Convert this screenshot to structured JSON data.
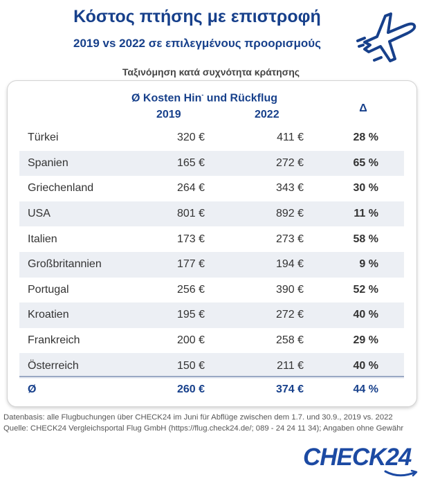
{
  "header": {
    "title": "Κόστος πτήσης με επιστροφή",
    "subtitle": "2019 vs 2022 σε επιλεγμένους προορισμούς",
    "sort_note": "Ταξινόμηση κατά συχνότητα κράτησης"
  },
  "table": {
    "heading_main": "Ø Kosten Hin",
    "heading_sup": "-",
    "heading_rest": " und Rückflug",
    "year_1": "2019",
    "year_2": "2022",
    "delta": "Δ",
    "rows": [
      {
        "country": "Türkei",
        "v2019": "320 €",
        "v2022": "411 €",
        "delta": "28 %"
      },
      {
        "country": "Spanien",
        "v2019": "165 €",
        "v2022": "272 €",
        "delta": "65 %"
      },
      {
        "country": "Griechenland",
        "v2019": "264 €",
        "v2022": "343 €",
        "delta": "30 %"
      },
      {
        "country": "USA",
        "v2019": "801 €",
        "v2022": "892 €",
        "delta": "11 %"
      },
      {
        "country": "Italien",
        "v2019": "173 €",
        "v2022": "273 €",
        "delta": "58 %"
      },
      {
        "country": "Großbritannien",
        "v2019": "177 €",
        "v2022": "194 €",
        "delta": "9 %"
      },
      {
        "country": "Portugal",
        "v2019": "256 €",
        "v2022": "390 €",
        "delta": "52 %"
      },
      {
        "country": "Kroatien",
        "v2019": "195 €",
        "v2022": "272 €",
        "delta": "40 %"
      },
      {
        "country": "Frankreich",
        "v2019": "200 €",
        "v2022": "258 €",
        "delta": "29 %"
      },
      {
        "country": "Österreich",
        "v2019": "150 €",
        "v2022": "211 €",
        "delta": "40 %"
      }
    ],
    "average": {
      "country": "Ø",
      "v2019": "260 €",
      "v2022": "374 €",
      "delta": "44 %"
    }
  },
  "footer": {
    "line_1": "Datenbasis: alle Flugbuchungen über CHECK24 im Juni für Abflüge zwischen dem 1.7. und 30.9., 2019 vs. 2022",
    "line_2": "Quelle: CHECK24 Vergleichsportal Flug GmbH (https://flug.check24.de/; 089 - 24 24 11 34); Angaben ohne Gewähr"
  },
  "logo": "CHECK24",
  "colors": {
    "brand_blue": "#17408b",
    "row_shade": "#eceff4"
  },
  "icons": [
    "airplane-icon"
  ]
}
